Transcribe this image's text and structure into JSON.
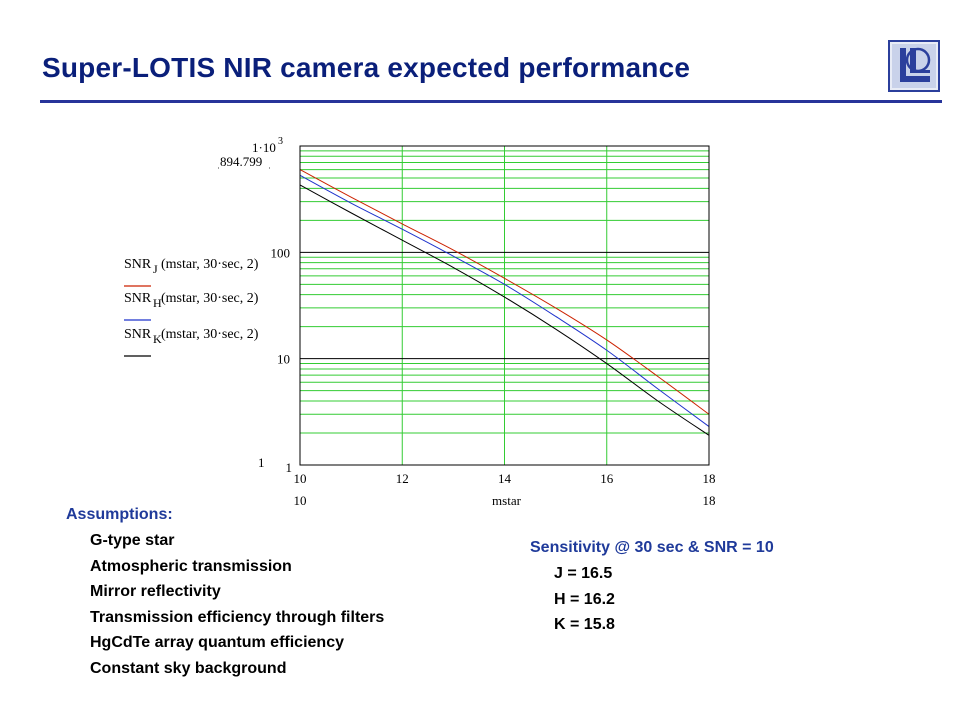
{
  "title": "Super-LOTIS NIR camera expected performance",
  "logo": {
    "icon": "llnl-logo-icon",
    "color": "#2b3f9c"
  },
  "chart_data": {
    "type": "line",
    "xlabel": "mstar",
    "x_tick_labels": [
      "10",
      "12",
      "14",
      "16",
      "18"
    ],
    "x_range_labels": [
      "10",
      "18"
    ],
    "xlim": [
      10,
      18
    ],
    "ylim": [
      1,
      1000
    ],
    "yscale": "log",
    "y_tick_labels": [
      "10",
      "100"
    ],
    "y_top_label_base": "1·10",
    "y_top_label_exp": "3",
    "y_bottom_inner_label": "1",
    "y_range_labels": {
      "max": "894.799",
      "min": "1"
    },
    "grid": true,
    "grid_color": "#33cc33",
    "series": [
      {
        "label_prefix": "SNR",
        "label_sub": "J",
        "label_args": "(mstar, 30·sec, 2)",
        "color": "#cc2200",
        "x": [
          10,
          11,
          12,
          13,
          14,
          15,
          16,
          17,
          18
        ],
        "y": [
          600,
          330,
          185,
          105,
          57,
          30,
          15,
          6.8,
          3.0
        ]
      },
      {
        "label_prefix": "SNR",
        "label_sub": "H",
        "label_args": "(mstar, 30·sec, 2)",
        "color": "#1f33cc",
        "x": [
          10,
          11,
          12,
          13,
          14,
          15,
          16,
          17,
          18
        ],
        "y": [
          530,
          290,
          165,
          92,
          50,
          25,
          12,
          5.2,
          2.3
        ]
      },
      {
        "label_prefix": "SNR",
        "label_sub": "K",
        "label_args": "(mstar, 30·sec, 2)",
        "color": "#000000",
        "x": [
          10,
          11,
          12,
          13,
          14,
          15,
          16,
          17,
          18
        ],
        "y": [
          430,
          235,
          130,
          72,
          38,
          19,
          9.0,
          4.0,
          1.9
        ]
      }
    ]
  },
  "assumptions": {
    "heading": "Assumptions:",
    "items": [
      "G-type star",
      "Atmospheric transmission",
      "Mirror reflectivity",
      "Transmission efficiency through filters",
      "HgCdTe array quantum efficiency",
      "Constant sky background"
    ]
  },
  "sensitivity": {
    "heading": "Sensitivity @ 30 sec & SNR = 10",
    "items": [
      "J = 16.5",
      "H = 16.2",
      "K = 15.8"
    ]
  }
}
